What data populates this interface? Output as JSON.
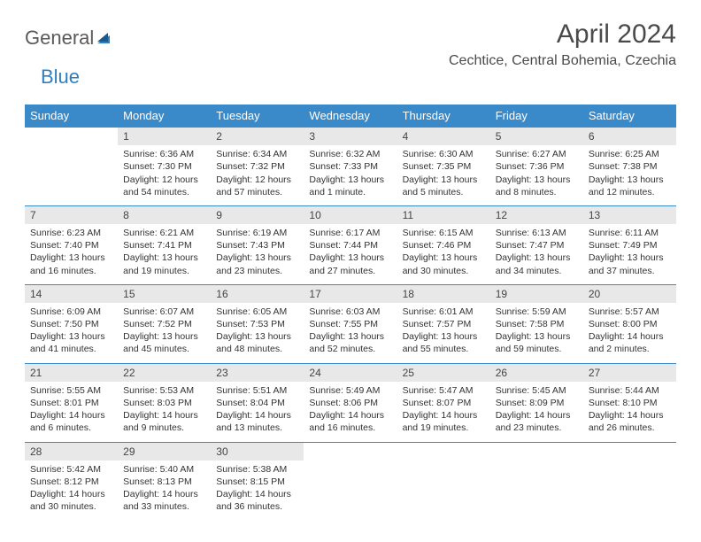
{
  "logo": {
    "part1": "General",
    "part2": "Blue"
  },
  "title": "April 2024",
  "location": "Cechtice, Central Bohemia, Czechia",
  "colors": {
    "header_bg": "#3a89c9",
    "header_text": "#ffffff",
    "daynum_bg": "#e8e8e8",
    "row_border": "#3a89c9",
    "logo_gray": "#5a5a5a",
    "logo_blue": "#2f7fc1",
    "text": "#333333",
    "page_bg": "#ffffff"
  },
  "day_headers": [
    "Sunday",
    "Monday",
    "Tuesday",
    "Wednesday",
    "Thursday",
    "Friday",
    "Saturday"
  ],
  "weeks": [
    [
      null,
      {
        "n": "1",
        "sr": "Sunrise: 6:36 AM",
        "ss": "Sunset: 7:30 PM",
        "dl1": "Daylight: 12 hours",
        "dl2": "and 54 minutes."
      },
      {
        "n": "2",
        "sr": "Sunrise: 6:34 AM",
        "ss": "Sunset: 7:32 PM",
        "dl1": "Daylight: 12 hours",
        "dl2": "and 57 minutes."
      },
      {
        "n": "3",
        "sr": "Sunrise: 6:32 AM",
        "ss": "Sunset: 7:33 PM",
        "dl1": "Daylight: 13 hours",
        "dl2": "and 1 minute."
      },
      {
        "n": "4",
        "sr": "Sunrise: 6:30 AM",
        "ss": "Sunset: 7:35 PM",
        "dl1": "Daylight: 13 hours",
        "dl2": "and 5 minutes."
      },
      {
        "n": "5",
        "sr": "Sunrise: 6:27 AM",
        "ss": "Sunset: 7:36 PM",
        "dl1": "Daylight: 13 hours",
        "dl2": "and 8 minutes."
      },
      {
        "n": "6",
        "sr": "Sunrise: 6:25 AM",
        "ss": "Sunset: 7:38 PM",
        "dl1": "Daylight: 13 hours",
        "dl2": "and 12 minutes."
      }
    ],
    [
      {
        "n": "7",
        "sr": "Sunrise: 6:23 AM",
        "ss": "Sunset: 7:40 PM",
        "dl1": "Daylight: 13 hours",
        "dl2": "and 16 minutes."
      },
      {
        "n": "8",
        "sr": "Sunrise: 6:21 AM",
        "ss": "Sunset: 7:41 PM",
        "dl1": "Daylight: 13 hours",
        "dl2": "and 19 minutes."
      },
      {
        "n": "9",
        "sr": "Sunrise: 6:19 AM",
        "ss": "Sunset: 7:43 PM",
        "dl1": "Daylight: 13 hours",
        "dl2": "and 23 minutes."
      },
      {
        "n": "10",
        "sr": "Sunrise: 6:17 AM",
        "ss": "Sunset: 7:44 PM",
        "dl1": "Daylight: 13 hours",
        "dl2": "and 27 minutes."
      },
      {
        "n": "11",
        "sr": "Sunrise: 6:15 AM",
        "ss": "Sunset: 7:46 PM",
        "dl1": "Daylight: 13 hours",
        "dl2": "and 30 minutes."
      },
      {
        "n": "12",
        "sr": "Sunrise: 6:13 AM",
        "ss": "Sunset: 7:47 PM",
        "dl1": "Daylight: 13 hours",
        "dl2": "and 34 minutes."
      },
      {
        "n": "13",
        "sr": "Sunrise: 6:11 AM",
        "ss": "Sunset: 7:49 PM",
        "dl1": "Daylight: 13 hours",
        "dl2": "and 37 minutes."
      }
    ],
    [
      {
        "n": "14",
        "sr": "Sunrise: 6:09 AM",
        "ss": "Sunset: 7:50 PM",
        "dl1": "Daylight: 13 hours",
        "dl2": "and 41 minutes."
      },
      {
        "n": "15",
        "sr": "Sunrise: 6:07 AM",
        "ss": "Sunset: 7:52 PM",
        "dl1": "Daylight: 13 hours",
        "dl2": "and 45 minutes."
      },
      {
        "n": "16",
        "sr": "Sunrise: 6:05 AM",
        "ss": "Sunset: 7:53 PM",
        "dl1": "Daylight: 13 hours",
        "dl2": "and 48 minutes."
      },
      {
        "n": "17",
        "sr": "Sunrise: 6:03 AM",
        "ss": "Sunset: 7:55 PM",
        "dl1": "Daylight: 13 hours",
        "dl2": "and 52 minutes."
      },
      {
        "n": "18",
        "sr": "Sunrise: 6:01 AM",
        "ss": "Sunset: 7:57 PM",
        "dl1": "Daylight: 13 hours",
        "dl2": "and 55 minutes."
      },
      {
        "n": "19",
        "sr": "Sunrise: 5:59 AM",
        "ss": "Sunset: 7:58 PM",
        "dl1": "Daylight: 13 hours",
        "dl2": "and 59 minutes."
      },
      {
        "n": "20",
        "sr": "Sunrise: 5:57 AM",
        "ss": "Sunset: 8:00 PM",
        "dl1": "Daylight: 14 hours",
        "dl2": "and 2 minutes."
      }
    ],
    [
      {
        "n": "21",
        "sr": "Sunrise: 5:55 AM",
        "ss": "Sunset: 8:01 PM",
        "dl1": "Daylight: 14 hours",
        "dl2": "and 6 minutes."
      },
      {
        "n": "22",
        "sr": "Sunrise: 5:53 AM",
        "ss": "Sunset: 8:03 PM",
        "dl1": "Daylight: 14 hours",
        "dl2": "and 9 minutes."
      },
      {
        "n": "23",
        "sr": "Sunrise: 5:51 AM",
        "ss": "Sunset: 8:04 PM",
        "dl1": "Daylight: 14 hours",
        "dl2": "and 13 minutes."
      },
      {
        "n": "24",
        "sr": "Sunrise: 5:49 AM",
        "ss": "Sunset: 8:06 PM",
        "dl1": "Daylight: 14 hours",
        "dl2": "and 16 minutes."
      },
      {
        "n": "25",
        "sr": "Sunrise: 5:47 AM",
        "ss": "Sunset: 8:07 PM",
        "dl1": "Daylight: 14 hours",
        "dl2": "and 19 minutes."
      },
      {
        "n": "26",
        "sr": "Sunrise: 5:45 AM",
        "ss": "Sunset: 8:09 PM",
        "dl1": "Daylight: 14 hours",
        "dl2": "and 23 minutes."
      },
      {
        "n": "27",
        "sr": "Sunrise: 5:44 AM",
        "ss": "Sunset: 8:10 PM",
        "dl1": "Daylight: 14 hours",
        "dl2": "and 26 minutes."
      }
    ],
    [
      {
        "n": "28",
        "sr": "Sunrise: 5:42 AM",
        "ss": "Sunset: 8:12 PM",
        "dl1": "Daylight: 14 hours",
        "dl2": "and 30 minutes."
      },
      {
        "n": "29",
        "sr": "Sunrise: 5:40 AM",
        "ss": "Sunset: 8:13 PM",
        "dl1": "Daylight: 14 hours",
        "dl2": "and 33 minutes."
      },
      {
        "n": "30",
        "sr": "Sunrise: 5:38 AM",
        "ss": "Sunset: 8:15 PM",
        "dl1": "Daylight: 14 hours",
        "dl2": "and 36 minutes."
      },
      null,
      null,
      null,
      null
    ]
  ]
}
